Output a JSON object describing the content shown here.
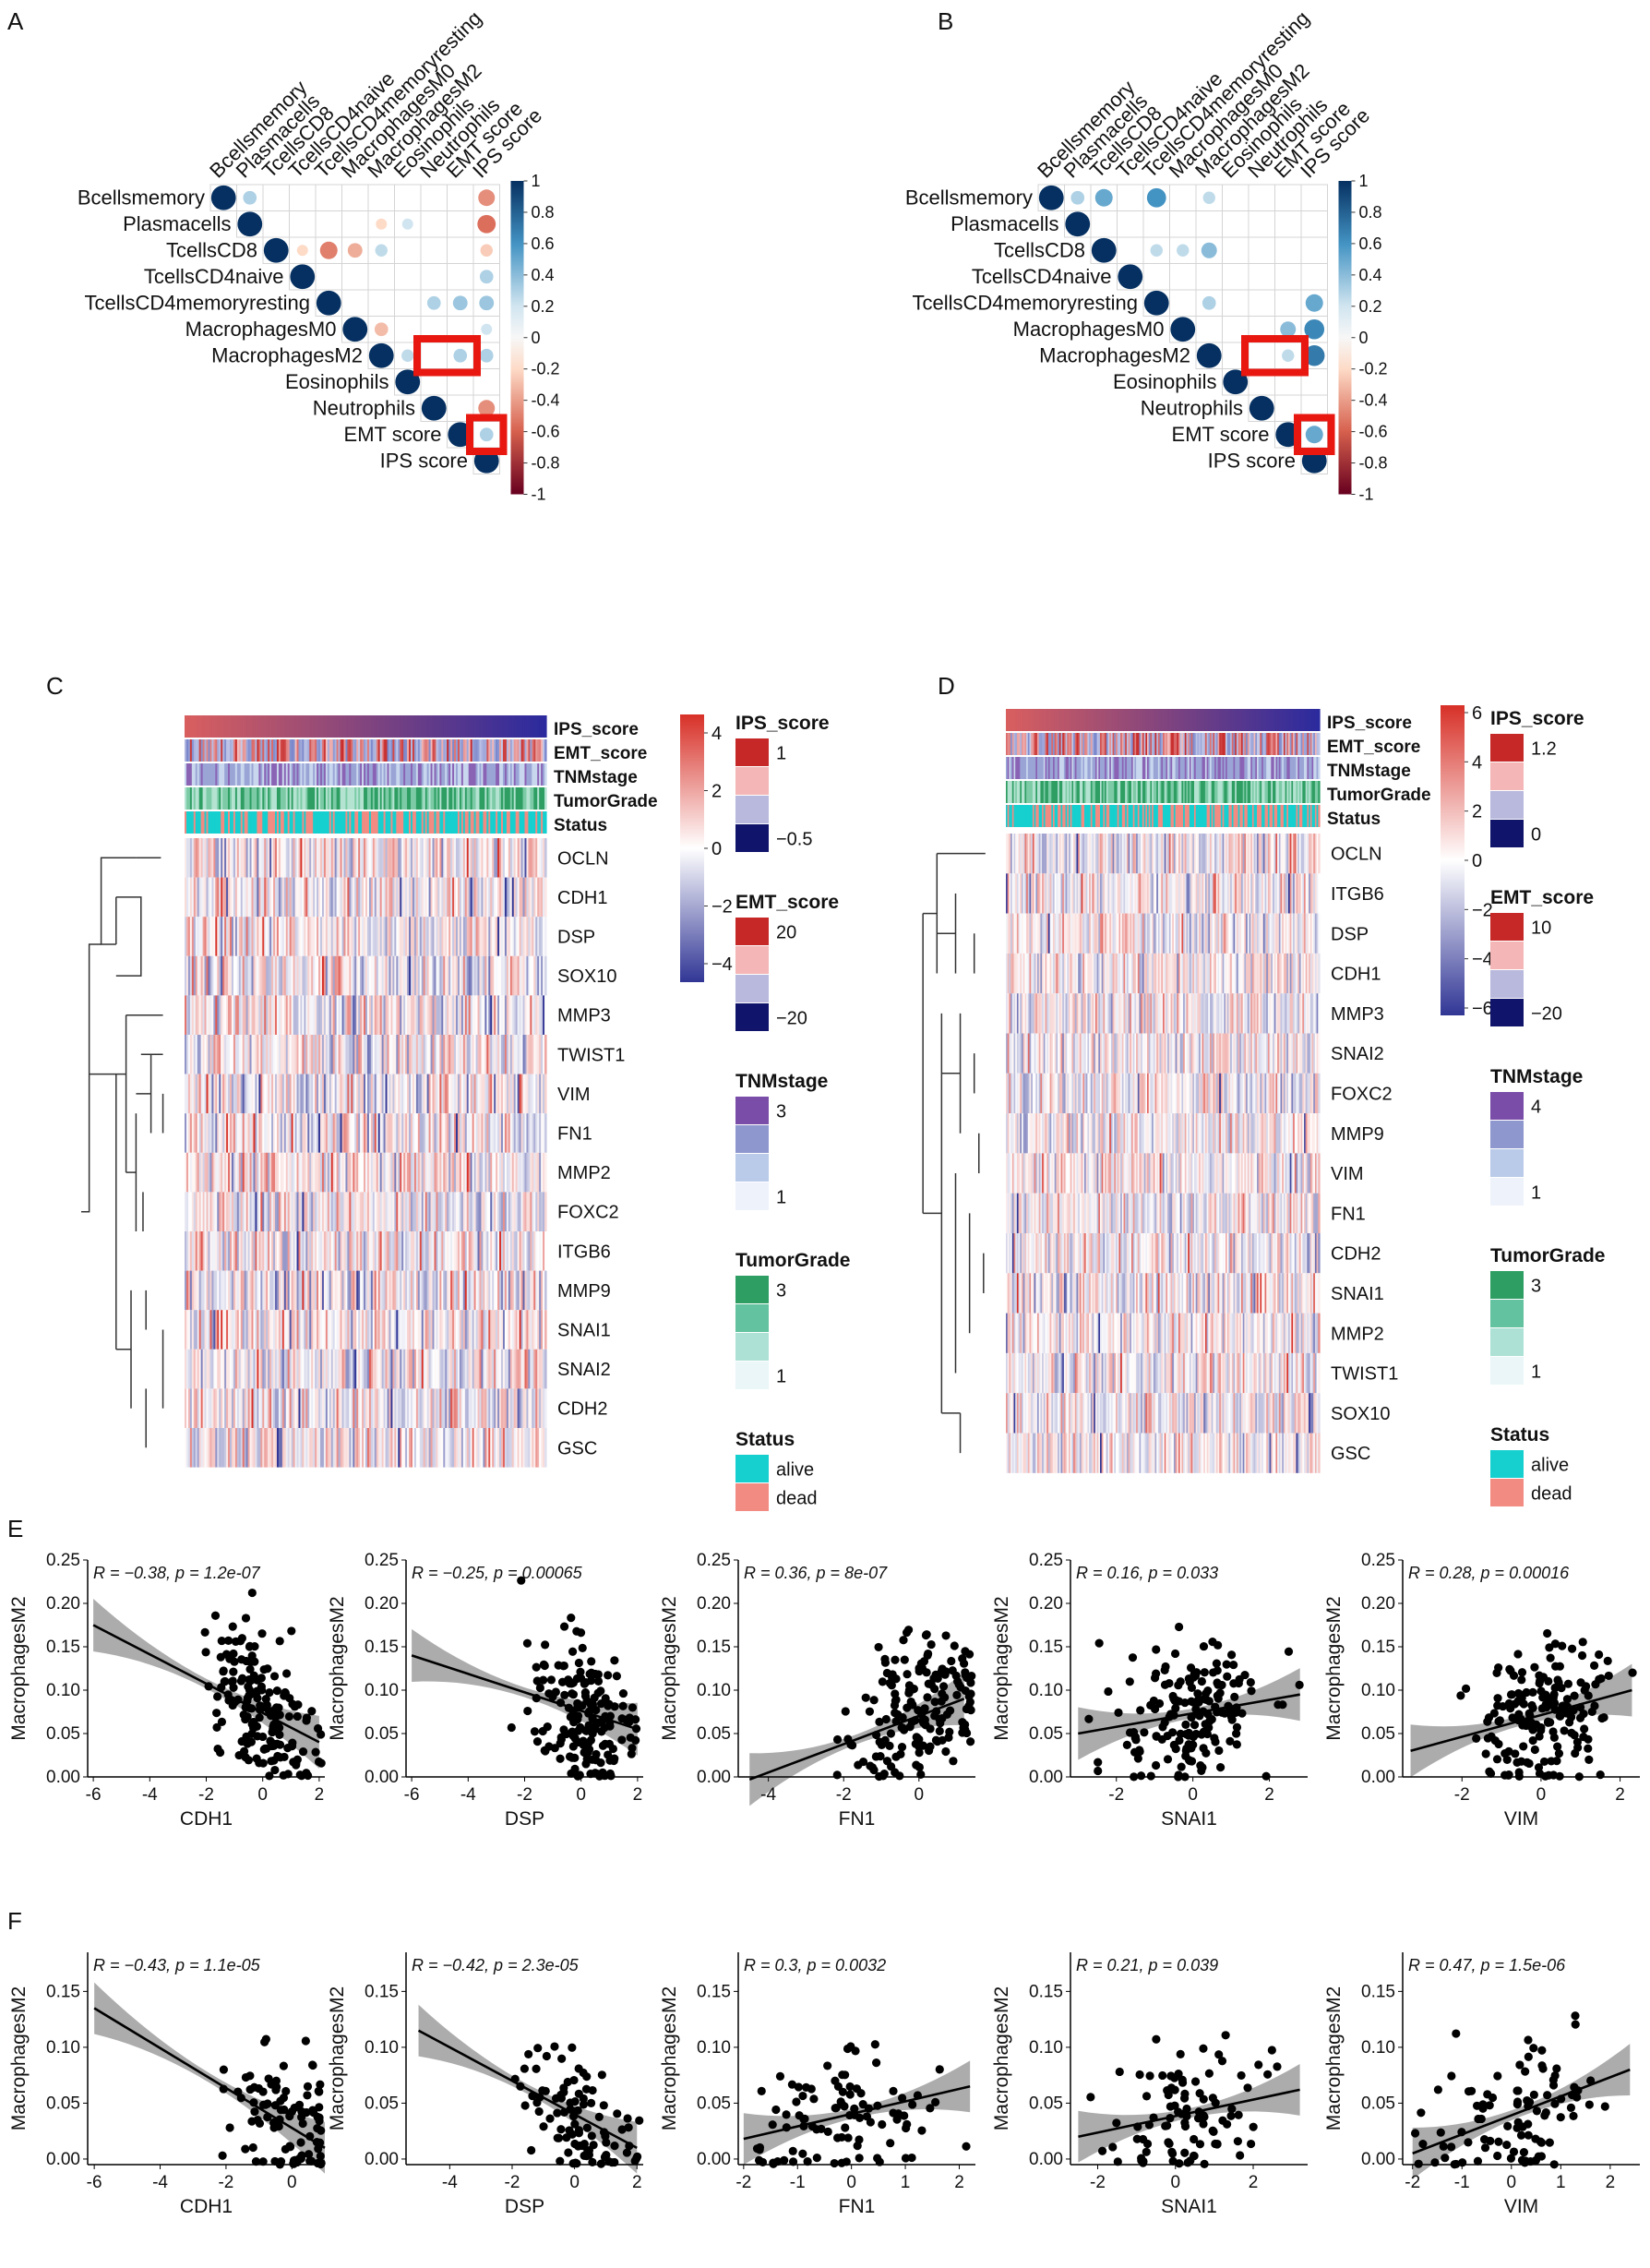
{
  "panels": {
    "A": "A",
    "B": "B",
    "C": "C",
    "D": "D",
    "E": "E",
    "F": "F"
  },
  "chart_data": [
    {
      "id": "A",
      "type": "heatmap",
      "subtype": "correlation-circles",
      "labels": [
        "Bcellsmemory",
        "Plasmacells",
        "TcellsCD8",
        "TcellsCD4naive",
        "TcellsCD4memoryresting",
        "MacrophagesM0",
        "MacrophagesM2",
        "Eosinophils",
        "Neutrophils",
        "EMT score",
        "IPS score"
      ],
      "upper_triangle": [
        {
          "row": 0,
          "col": 1,
          "r": 0.3
        },
        {
          "row": 0,
          "col": 10,
          "r": -0.45
        },
        {
          "row": 1,
          "col": 6,
          "r": -0.2
        },
        {
          "row": 1,
          "col": 7,
          "r": 0.2
        },
        {
          "row": 1,
          "col": 10,
          "r": -0.55
        },
        {
          "row": 2,
          "col": 3,
          "r": -0.2
        },
        {
          "row": 2,
          "col": 4,
          "r": -0.5
        },
        {
          "row": 2,
          "col": 5,
          "r": -0.35
        },
        {
          "row": 2,
          "col": 6,
          "r": 0.25
        },
        {
          "row": 2,
          "col": 10,
          "r": -0.25
        },
        {
          "row": 3,
          "col": 10,
          "r": 0.3
        },
        {
          "row": 4,
          "col": 8,
          "r": 0.3
        },
        {
          "row": 4,
          "col": 9,
          "r": 0.35
        },
        {
          "row": 4,
          "col": 10,
          "r": 0.35
        },
        {
          "row": 5,
          "col": 6,
          "r": -0.3
        },
        {
          "row": 5,
          "col": 10,
          "r": 0.2
        },
        {
          "row": 6,
          "col": 7,
          "r": 0.25
        },
        {
          "row": 6,
          "col": 9,
          "r": 0.3
        },
        {
          "row": 6,
          "col": 10,
          "r": 0.3
        },
        {
          "row": 8,
          "col": 10,
          "r": -0.45
        },
        {
          "row": 9,
          "col": 10,
          "r": 0.3
        }
      ],
      "colorbar": {
        "min": -1,
        "max": 1,
        "ticks": [
          "1",
          "0.8",
          "0.6",
          "0.4",
          "0.2",
          "0",
          "-0.2",
          "-0.4",
          "-0.6",
          "-0.8",
          "-1"
        ]
      },
      "highlight": [
        "MacrophagesM2 vs EMT score / IPS score",
        "EMT score vs IPS score"
      ]
    },
    {
      "id": "B",
      "type": "heatmap",
      "subtype": "correlation-circles",
      "labels": [
        "Bcellsmemory",
        "Plasmacells",
        "TcellsCD8",
        "TcellsCD4naive",
        "TcellsCD4memoryresting",
        "MacrophagesM0",
        "MacrophagesM2",
        "Eosinophils",
        "Neutrophils",
        "EMT score",
        "IPS score"
      ],
      "upper_triangle": [
        {
          "row": 0,
          "col": 1,
          "r": 0.3
        },
        {
          "row": 0,
          "col": 2,
          "r": 0.5
        },
        {
          "row": 0,
          "col": 4,
          "r": 0.6
        },
        {
          "row": 0,
          "col": 6,
          "r": 0.25
        },
        {
          "row": 2,
          "col": 4,
          "r": 0.25
        },
        {
          "row": 2,
          "col": 5,
          "r": 0.25
        },
        {
          "row": 2,
          "col": 6,
          "r": 0.4
        },
        {
          "row": 4,
          "col": 6,
          "r": 0.3
        },
        {
          "row": 4,
          "col": 10,
          "r": 0.5
        },
        {
          "row": 5,
          "col": 9,
          "r": 0.4
        },
        {
          "row": 5,
          "col": 10,
          "r": 0.65
        },
        {
          "row": 6,
          "col": 9,
          "r": 0.25
        },
        {
          "row": 6,
          "col": 10,
          "r": 0.7
        },
        {
          "row": 9,
          "col": 10,
          "r": 0.5
        }
      ],
      "colorbar": {
        "min": -1,
        "max": 1,
        "ticks": [
          "1",
          "0.8",
          "0.6",
          "0.4",
          "0.2",
          "0",
          "-0.2",
          "-0.4",
          "-0.6",
          "-0.8",
          "-1"
        ]
      },
      "highlight": [
        "MacrophagesM2 vs EMT score / IPS score",
        "EMT score vs IPS score"
      ]
    },
    {
      "id": "C",
      "type": "heatmap",
      "annotations": [
        "IPS_score",
        "EMT_score",
        "TNMstage",
        "TumorGrade",
        "Status"
      ],
      "genes": [
        "OCLN",
        "CDH1",
        "DSP",
        "SOX10",
        "MMP3",
        "TWIST1",
        "VIM",
        "FN1",
        "MMP2",
        "FOXC2",
        "ITGB6",
        "MMP9",
        "SNAI1",
        "SNAI2",
        "CDH2",
        "GSC"
      ],
      "colorbar": {
        "ticks": [
          "4",
          "2",
          "0",
          "−2",
          "−4"
        ]
      },
      "legends": [
        {
          "title": "IPS_score",
          "labels": [
            "1",
            "−0.5"
          ]
        },
        {
          "title": "EMT_score",
          "labels": [
            "20",
            "−20"
          ]
        },
        {
          "title": "TNMstage",
          "labels": [
            "3",
            "1"
          ]
        },
        {
          "title": "TumorGrade",
          "labels": [
            "3",
            "1"
          ]
        },
        {
          "title": "Status",
          "labels": [
            "alive",
            "dead"
          ]
        }
      ]
    },
    {
      "id": "D",
      "type": "heatmap",
      "annotations": [
        "IPS_score",
        "EMT_score",
        "TNMstage",
        "TumorGrade",
        "Status"
      ],
      "genes": [
        "OCLN",
        "ITGB6",
        "DSP",
        "CDH1",
        "MMP3",
        "SNAI2",
        "FOXC2",
        "MMP9",
        "VIM",
        "FN1",
        "CDH2",
        "SNAI1",
        "MMP2",
        "TWIST1",
        "SOX10",
        "GSC"
      ],
      "colorbar": {
        "ticks": [
          "6",
          "4",
          "2",
          "0",
          "−2",
          "−4",
          "−6"
        ]
      },
      "legends": [
        {
          "title": "IPS_score",
          "labels": [
            "1.2",
            "0"
          ]
        },
        {
          "title": "EMT_score",
          "labels": [
            "10",
            "−20"
          ]
        },
        {
          "title": "TNMstage",
          "labels": [
            "4",
            "1"
          ]
        },
        {
          "title": "TumorGrade",
          "labels": [
            "3",
            "1"
          ]
        },
        {
          "title": "Status",
          "labels": [
            "alive",
            "dead"
          ]
        }
      ]
    },
    {
      "id": "E",
      "type": "scatter",
      "ylabel": "MacrophagesM2",
      "plots": [
        {
          "xlabel": "CDH1",
          "stat": "R = −0.38, p = 1.2e-07",
          "xticks": [
            "-6",
            "-4",
            "-2",
            "0",
            "2"
          ],
          "xlim": [
            -6.2,
            2.2
          ],
          "yticks": [
            "0.00",
            "0.05",
            "0.10",
            "0.15",
            "0.20",
            "0.25"
          ],
          "ylim": [
            0,
            0.25
          ],
          "fit": [
            [
              -6,
              0.175
            ],
            [
              2,
              0.04
            ]
          ]
        },
        {
          "xlabel": "DSP",
          "stat": "R = −0.25, p = 0.00065",
          "xticks": [
            "-6",
            "-4",
            "-2",
            "0",
            "2"
          ],
          "xlim": [
            -6.2,
            2.2
          ],
          "yticks": [
            "0.00",
            "0.05",
            "0.10",
            "0.15",
            "0.20",
            "0.25"
          ],
          "ylim": [
            0,
            0.25
          ],
          "fit": [
            [
              -6,
              0.14
            ],
            [
              2,
              0.055
            ]
          ]
        },
        {
          "xlabel": "FN1",
          "stat": "R = 0.36, p = 8e-07",
          "xticks": [
            "-4",
            "-2",
            "0"
          ],
          "xlim": [
            -4.8,
            1.5
          ],
          "yticks": [
            "0.00",
            "0.05",
            "0.10",
            "0.15",
            "0.20",
            "0.25"
          ],
          "ylim": [
            0,
            0.25
          ],
          "fit": [
            [
              -4.5,
              -0.003
            ],
            [
              1.2,
              0.09
            ]
          ]
        },
        {
          "xlabel": "SNAI1",
          "stat": "R = 0.16, p = 0.033",
          "xticks": [
            "-2",
            "0",
            "2"
          ],
          "xlim": [
            -3.2,
            3
          ],
          "yticks": [
            "0.00",
            "0.05",
            "0.10",
            "0.15",
            "0.20",
            "0.25"
          ],
          "ylim": [
            0,
            0.25
          ],
          "fit": [
            [
              -3,
              0.05
            ],
            [
              2.8,
              0.095
            ]
          ]
        },
        {
          "xlabel": "VIM",
          "stat": "R = 0.28, p = 0.00016",
          "xticks": [
            "-2",
            "0",
            "2"
          ],
          "xlim": [
            -3.5,
            2.5
          ],
          "yticks": [
            "0.00",
            "0.05",
            "0.10",
            "0.15",
            "0.20",
            "0.25"
          ],
          "ylim": [
            0,
            0.25
          ],
          "fit": [
            [
              -3.3,
              0.03
            ],
            [
              2.3,
              0.1
            ]
          ]
        }
      ]
    },
    {
      "id": "F",
      "type": "scatter",
      "ylabel": "MacrophagesM2",
      "plots": [
        {
          "xlabel": "CDH1",
          "stat": "R = −0.43, p = 1.1e-05",
          "xticks": [
            "-6",
            "-4",
            "-2",
            "0"
          ],
          "xlim": [
            -6.2,
            1
          ],
          "yticks": [
            "0.00",
            "0.05",
            "0.10",
            "0.15"
          ],
          "ylim": [
            -0.005,
            0.185
          ],
          "fit": [
            [
              -6,
              0.135
            ],
            [
              1,
              0.01
            ]
          ]
        },
        {
          "xlabel": "DSP",
          "stat": "R = −0.42, p = 2.3e-05",
          "xticks": [
            "-4",
            "-2",
            "0",
            "2"
          ],
          "xlim": [
            -5.4,
            2.2
          ],
          "yticks": [
            "0.00",
            "0.05",
            "0.10",
            "0.15"
          ],
          "ylim": [
            -0.005,
            0.185
          ],
          "fit": [
            [
              -5,
              0.115
            ],
            [
              2,
              0.01
            ]
          ]
        },
        {
          "xlabel": "FN1",
          "stat": "R = 0.3, p = 0.0032",
          "xticks": [
            "-2",
            "-1",
            "0",
            "1",
            "2"
          ],
          "xlim": [
            -2.1,
            2.3
          ],
          "yticks": [
            "0.00",
            "0.05",
            "0.10",
            "0.15"
          ],
          "ylim": [
            -0.005,
            0.185
          ],
          "fit": [
            [
              -2,
              0.018
            ],
            [
              2.2,
              0.065
            ]
          ]
        },
        {
          "xlabel": "SNAI1",
          "stat": "R = 0.21, p = 0.039",
          "xticks": [
            "-2",
            "0",
            "2"
          ],
          "xlim": [
            -2.7,
            3.4
          ],
          "yticks": [
            "0.00",
            "0.05",
            "0.10",
            "0.15"
          ],
          "ylim": [
            -0.005,
            0.185
          ],
          "fit": [
            [
              -2.5,
              0.02
            ],
            [
              3.2,
              0.062
            ]
          ]
        },
        {
          "xlabel": "VIM",
          "stat": "R = 0.47, p = 1.5e-06",
          "xticks": [
            "-2",
            "-1",
            "0",
            "1",
            "2"
          ],
          "xlim": [
            -2.2,
            2.6
          ],
          "yticks": [
            "0.00",
            "0.05",
            "0.10",
            "0.15"
          ],
          "ylim": [
            -0.005,
            0.185
          ],
          "fit": [
            [
              -2,
              0.005
            ],
            [
              2.4,
              0.08
            ]
          ]
        }
      ]
    }
  ]
}
